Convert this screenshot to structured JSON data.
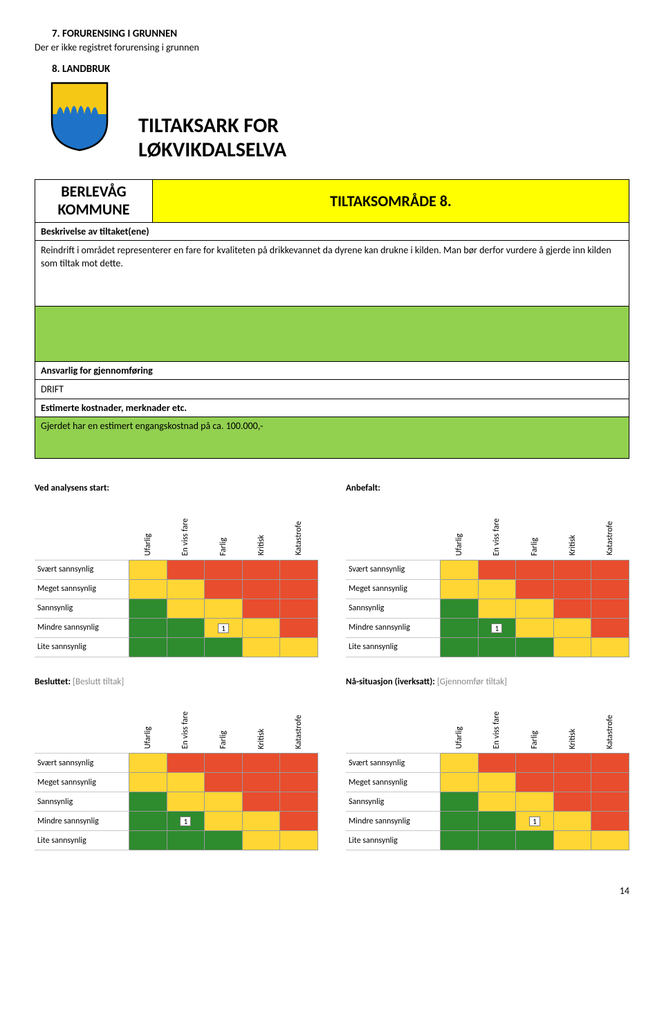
{
  "section7": {
    "heading": "7. FORURENSING I GRUNNEN",
    "subtext": "Der er ikke registret forurensing i grunnen"
  },
  "section8": {
    "heading": "8. LANDBRUK",
    "main_title_line1": "TILTAKSARK FOR",
    "main_title_line2": "LØKVIKDALSELVA"
  },
  "kommune_line1": "BERLEVÅG",
  "kommune_line2": "KOMMUNE",
  "tiltaksomrade": "TILTAKSOMRÅDE 8.",
  "beskrivelse_header": "Beskrivelse av tiltaket(ene)",
  "beskrivelse_body": "Reindrift i området representerer en fare for kvaliteten på drikkevannet da dyrene kan drukne i kilden. Man bør derfor vurdere å gjerde inn kilden som tiltak mot dette.",
  "ansvarlig_header": "Ansvarlig for gjennomføring",
  "ansvarlig_value": "DRIFT",
  "kostnad_header": "Estimerte kostnader, merknader etc.",
  "kostnad_value": "Gjerdet har en estimert engangskostnad på ca. 100.000,-",
  "shield": {
    "outer_border": "#000000",
    "upper_fill": "#f6c816",
    "lower_fill": "#1e73c8",
    "wave_fill": "#1e73c8"
  },
  "risk_colors": {
    "green": "#2e8b2e",
    "yellow": "#ffd633",
    "red": "#e84d2e"
  },
  "risk_col_headers": [
    "Ufarlig",
    "En viss fare",
    "Farlig",
    "Kritisk",
    "Katastrofe"
  ],
  "risk_row_labels": [
    "Svært sannsynlig",
    "Meget sannsynlig",
    "Sannsynlig",
    "Mindre sannsynlig",
    "Lite sannsynlig"
  ],
  "risk_color_grid": [
    [
      "yellow",
      "red",
      "red",
      "red",
      "red"
    ],
    [
      "yellow",
      "yellow",
      "red",
      "red",
      "red"
    ],
    [
      "green",
      "yellow",
      "yellow",
      "red",
      "red"
    ],
    [
      "green",
      "green",
      "yellow",
      "yellow",
      "red"
    ],
    [
      "green",
      "green",
      "green",
      "yellow",
      "yellow"
    ]
  ],
  "matrices": [
    {
      "title": "Ved analysens start:",
      "grey": "",
      "marker": {
        "row": 3,
        "col": 2,
        "label": "1"
      }
    },
    {
      "title": "Anbefalt:",
      "grey": "",
      "marker": {
        "row": 3,
        "col": 1,
        "label": "1"
      }
    },
    {
      "title": "Besluttet: ",
      "grey": "[Beslutt tiltak]",
      "marker": {
        "row": 3,
        "col": 1,
        "label": "1"
      }
    },
    {
      "title": "Nå-situasjon (iverksatt): ",
      "grey": "[Gjennomfør tiltak]",
      "marker": {
        "row": 3,
        "col": 2,
        "label": "1"
      }
    }
  ],
  "page_number": "14"
}
